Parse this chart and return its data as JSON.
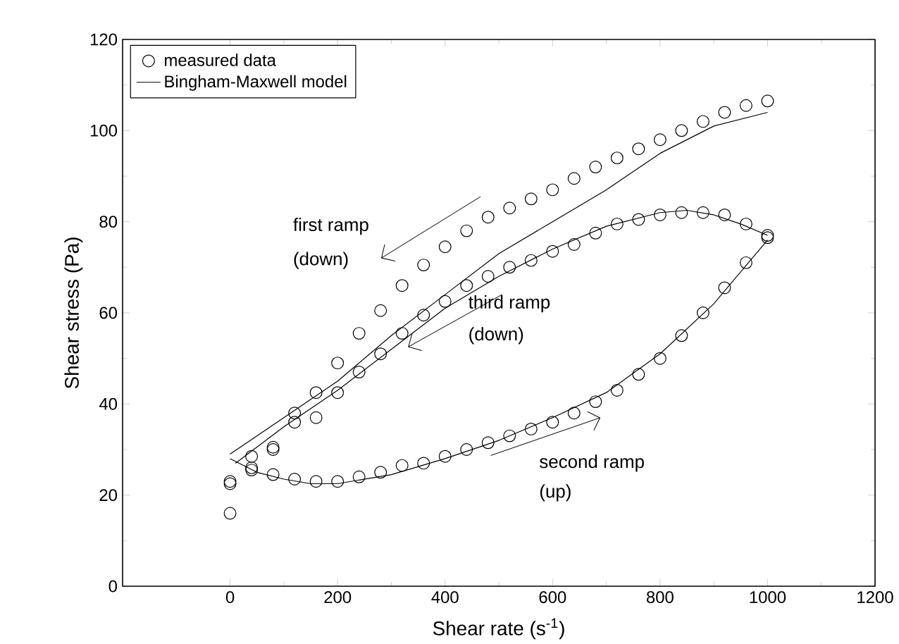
{
  "chart_data": {
    "type": "scatter",
    "xlabel": "Shear rate (s$^{-1}$)",
    "ylabel": "Shear stress (Pa)",
    "xlim": [
      -200,
      1200
    ],
    "xticks": [
      0,
      200,
      400,
      600,
      800,
      1000,
      1200
    ],
    "ylim": [
      0,
      120
    ],
    "yticks": [
      0,
      20,
      40,
      60,
      80,
      100,
      120
    ],
    "grid": false,
    "legend": "top left",
    "annotations": [
      "first ramp",
      "(down)",
      "third ramp",
      "(down)",
      "second ramp",
      "(up)"
    ],
    "series": [
      {
        "name": "measured data",
        "marker": "circle",
        "color": "#000000",
        "x": [
          1000,
          960,
          920,
          880,
          840,
          800,
          760,
          720,
          680,
          640,
          600,
          560,
          520,
          480,
          440,
          400,
          360,
          320,
          280,
          240,
          200,
          160,
          120,
          80,
          40,
          0,
          0,
          40,
          80,
          120,
          160,
          200,
          240,
          280,
          320,
          360,
          400,
          440,
          480,
          520,
          560,
          600,
          640,
          680,
          720,
          760,
          800,
          840,
          880,
          920,
          960,
          1000,
          1000,
          960,
          920,
          880,
          840,
          800,
          760,
          720,
          680,
          640,
          600,
          560,
          520,
          480,
          440,
          400,
          360,
          320,
          280,
          240,
          200,
          160,
          120,
          80,
          40,
          0
        ],
        "values": [
          106.5,
          105.5,
          104,
          102,
          100,
          98,
          96,
          94,
          92,
          89.5,
          87,
          85,
          83,
          81,
          78,
          74.5,
          70.5,
          66,
          60.5,
          55.5,
          49,
          42.5,
          38,
          30.5,
          26,
          23,
          22.5,
          25.5,
          24.5,
          23.5,
          23,
          23,
          24,
          25,
          26.5,
          27,
          28.5,
          30,
          31.5,
          33,
          34.5,
          36,
          38,
          40.5,
          43,
          46.5,
          50,
          55,
          60,
          65.5,
          71,
          76.5,
          77,
          79.5,
          81.5,
          82,
          82,
          81.5,
          80.5,
          79.5,
          77.5,
          75,
          73.5,
          71.5,
          70,
          68,
          66,
          62.5,
          59.5,
          55.5,
          51,
          47,
          42.5,
          37,
          36,
          30,
          28.5,
          16
        ]
      },
      {
        "name": "Bingham-Maxwell model",
        "type": "line",
        "marker": "none",
        "line_style": "solid",
        "color": "#000000",
        "x": [
          0,
          100,
          200,
          300,
          400,
          500,
          600,
          700,
          800,
          900,
          1000
        ],
        "values": [
          29,
          37,
          45,
          55,
          64,
          73,
          80,
          87,
          95,
          101,
          104
        ]
      },
      {
        "type": "line",
        "marker": "none",
        "line_style": "solid",
        "color": "#000000",
        "x": [
          0,
          50,
          100,
          150,
          200,
          300,
          400,
          500,
          600,
          700,
          800,
          900,
          1000
        ],
        "values": [
          28,
          25,
          23.5,
          22.5,
          22.5,
          24.5,
          28,
          32,
          37,
          42.5,
          51,
          62,
          76
        ]
      },
      {
        "type": "line",
        "marker": "none",
        "line_style": "solid",
        "color": "#000000",
        "x": [
          1000,
          950,
          900,
          850,
          800,
          700,
          600,
          500,
          400,
          300,
          200,
          100,
          10
        ],
        "values": [
          77,
          79.5,
          81.5,
          82.5,
          82,
          79,
          74,
          68,
          61,
          52,
          43,
          35,
          27
        ]
      }
    ]
  }
}
